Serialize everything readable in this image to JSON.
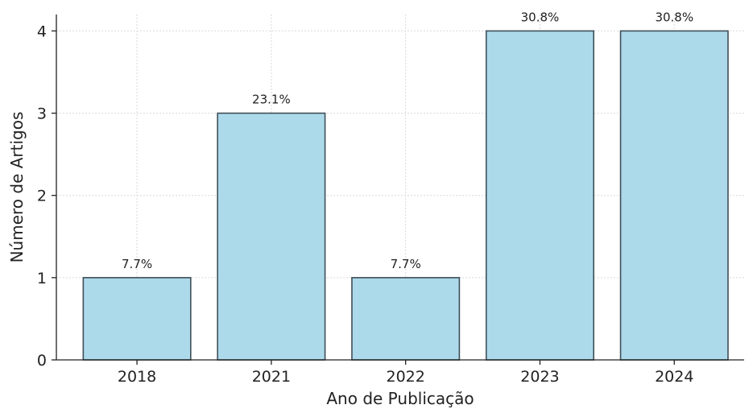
{
  "chart_data": {
    "type": "bar",
    "categories": [
      "2018",
      "2021",
      "2022",
      "2023",
      "2024"
    ],
    "values": [
      1,
      3,
      1,
      4,
      4
    ],
    "data_labels": [
      "7.7%",
      "23.1%",
      "7.7%",
      "30.8%",
      "30.8%"
    ],
    "title": "",
    "xlabel": "Ano de Publicação",
    "ylabel": "Número de Artigos",
    "ylim": [
      0,
      4.2
    ],
    "yticks": [
      0,
      1,
      2,
      3,
      4
    ],
    "grid": true,
    "legend": "none",
    "colors": {
      "bar_fill": "#ADDAEB",
      "bar_edge": "#3F4F58",
      "grid": "#D9D9D9",
      "axis": "#222222"
    }
  }
}
